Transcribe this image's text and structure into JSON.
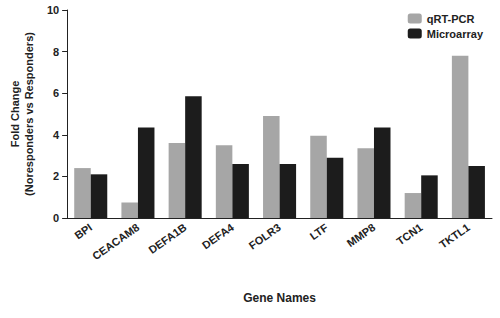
{
  "chart_data": {
    "type": "bar",
    "x_label": "Gene Names",
    "y_label": "Fold Change\n(Noresponders vs Responders)",
    "categories": [
      "BPI",
      "CEACAM8",
      "DEFA1B",
      "DEFA4",
      "FOLR3",
      "LTF",
      "MMP8",
      "TCN1",
      "TKTL1"
    ],
    "series": [
      {
        "name": "qRT-PCR",
        "color": "#a6a6a6",
        "values": [
          2.4,
          0.75,
          3.6,
          3.5,
          4.9,
          3.95,
          3.35,
          1.2,
          7.8
        ]
      },
      {
        "name": "Microarray",
        "color": "#1c1c1c",
        "values": [
          2.1,
          4.35,
          5.85,
          2.6,
          2.6,
          2.9,
          4.35,
          2.05,
          2.5
        ]
      }
    ],
    "ylim": [
      0,
      10
    ],
    "yticks": [
      0,
      2,
      4,
      6,
      8,
      10
    ],
    "grid": false,
    "legend": "top-right"
  }
}
